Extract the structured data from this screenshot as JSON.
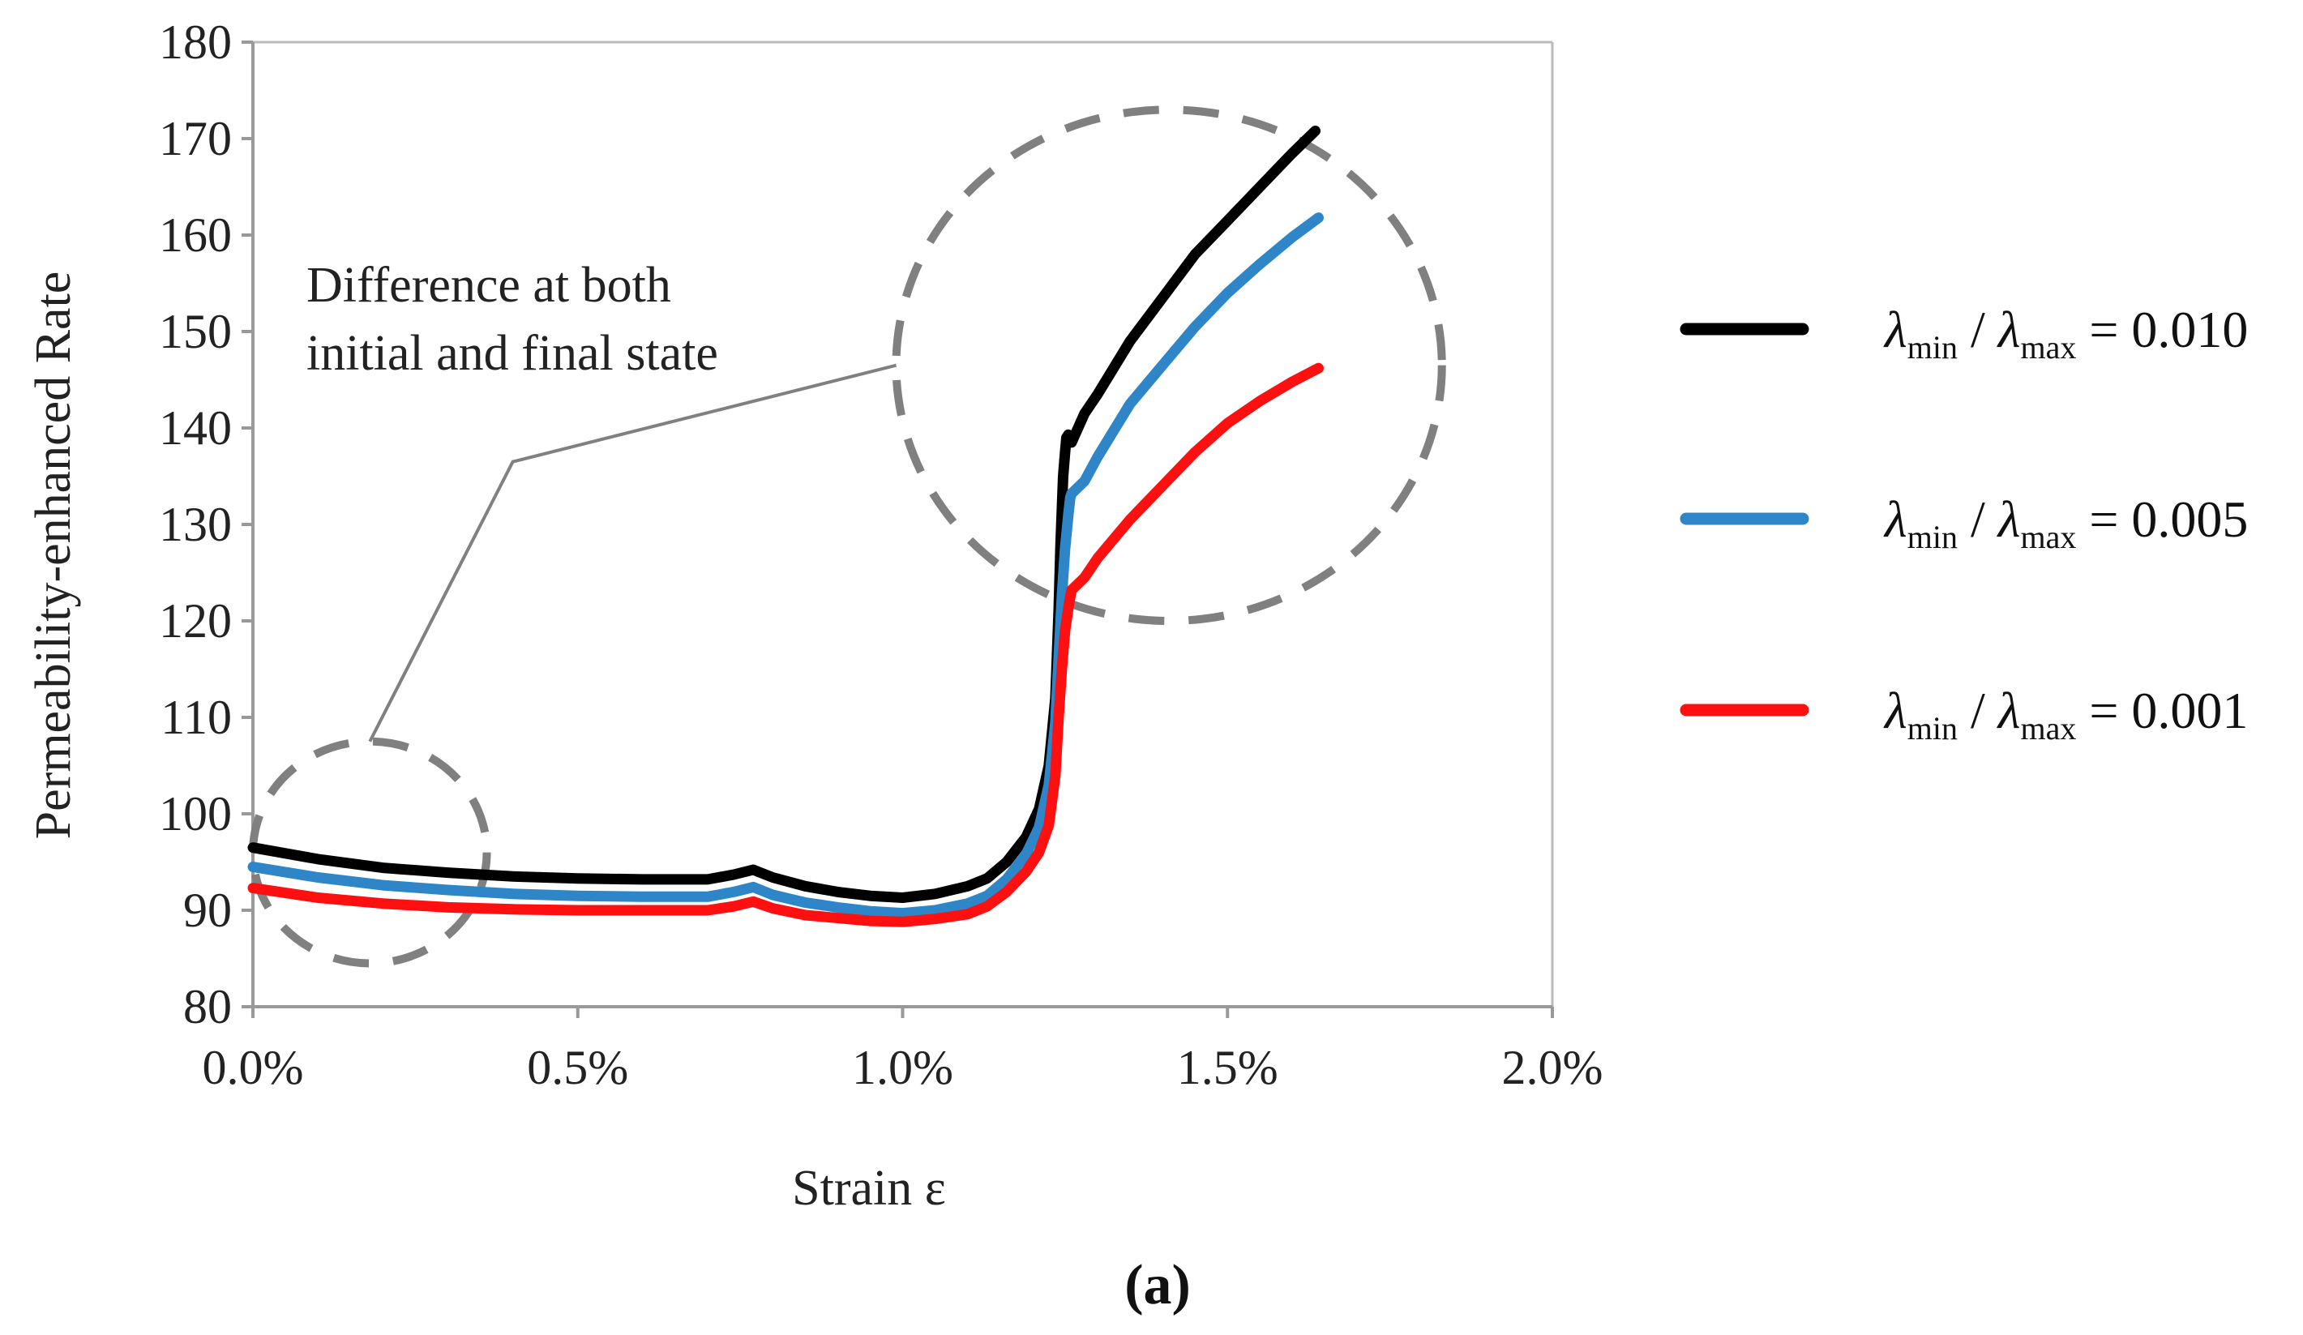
{
  "chart_data": {
    "type": "line",
    "title": "",
    "xlabel": "Strain ε",
    "ylabel": "Permeability-enhanced Rate",
    "xlim": [
      0.0,
      2.0
    ],
    "ylim": [
      80,
      180
    ],
    "x_ticks": [
      0.0,
      0.5,
      1.0,
      1.5,
      2.0
    ],
    "x_tick_labels": [
      "0.0%",
      "0.5%",
      "1.0%",
      "1.5%",
      "2.0%"
    ],
    "y_ticks": [
      80,
      90,
      100,
      110,
      120,
      130,
      140,
      150,
      160,
      170,
      180
    ],
    "y_tick_labels": [
      "80",
      "90",
      "100",
      "110",
      "120",
      "130",
      "140",
      "150",
      "160",
      "170",
      "180"
    ],
    "legend_position": "right",
    "annotation": {
      "line1": "Difference at both",
      "line2": "initial and final state"
    },
    "highlight_regions": [
      {
        "name": "initial",
        "center": [
          0.18,
          96
        ],
        "rx": 0.18,
        "ry": 11.5
      },
      {
        "name": "final",
        "center": [
          1.41,
          146.5
        ],
        "rx": 0.42,
        "ry": 26.5
      }
    ],
    "annotation_leader": [
      [
        0.99,
        146.5
      ],
      [
        0.4,
        136.5
      ],
      [
        0.18,
        107.5
      ]
    ],
    "series": [
      {
        "name": "λmin/λmax = 0.010",
        "legend": {
          "symbol": "λ",
          "sub1": "min",
          "sub2": "max",
          "value": "= 0.010"
        },
        "color": "#000000",
        "x": [
          0.0,
          0.1,
          0.2,
          0.3,
          0.4,
          0.5,
          0.6,
          0.7,
          0.74,
          0.77,
          0.8,
          0.85,
          0.9,
          0.95,
          1.0,
          1.05,
          1.1,
          1.13,
          1.16,
          1.19,
          1.21,
          1.225,
          1.235,
          1.24,
          1.243,
          1.247,
          1.25,
          1.252,
          1.255,
          1.26,
          1.28,
          1.3,
          1.35,
          1.4,
          1.45,
          1.5,
          1.55,
          1.6,
          1.635
        ],
        "y": [
          96.5,
          95.3,
          94.4,
          93.9,
          93.5,
          93.3,
          93.2,
          93.2,
          93.7,
          94.2,
          93.4,
          92.5,
          91.9,
          91.5,
          91.3,
          91.7,
          92.5,
          93.3,
          95.0,
          97.6,
          100.5,
          105.0,
          112.0,
          121.0,
          128.0,
          135.0,
          137.5,
          139.0,
          139.3,
          138.5,
          141.5,
          143.5,
          149.0,
          153.5,
          158.0,
          161.5,
          165.0,
          168.5,
          170.8
        ]
      },
      {
        "name": "λmin/λmax = 0.005",
        "legend": {
          "symbol": "λ",
          "sub1": "min",
          "sub2": "max",
          "value": "= 0.005"
        },
        "color": "#2E86C8",
        "x": [
          0.0,
          0.1,
          0.2,
          0.3,
          0.4,
          0.5,
          0.6,
          0.7,
          0.74,
          0.77,
          0.8,
          0.85,
          0.9,
          0.95,
          1.0,
          1.05,
          1.1,
          1.13,
          1.16,
          1.19,
          1.21,
          1.225,
          1.235,
          1.24,
          1.245,
          1.25,
          1.255,
          1.258,
          1.26,
          1.28,
          1.3,
          1.35,
          1.4,
          1.45,
          1.5,
          1.55,
          1.6,
          1.64
        ],
        "y": [
          94.5,
          93.4,
          92.6,
          92.1,
          91.7,
          91.5,
          91.4,
          91.4,
          91.9,
          92.4,
          91.6,
          90.8,
          90.3,
          89.9,
          89.7,
          90.0,
          90.7,
          91.5,
          93.2,
          95.8,
          98.6,
          103.0,
          109.5,
          116.0,
          122.5,
          127.5,
          131.0,
          132.8,
          133.2,
          134.5,
          137.0,
          142.5,
          146.5,
          150.5,
          154.0,
          157.0,
          159.8,
          161.8
        ]
      },
      {
        "name": "λmin/λmax = 0.001",
        "legend": {
          "symbol": "λ",
          "sub1": "min",
          "sub2": "max",
          "value": "= 0.001"
        },
        "color": "#FF1010",
        "x": [
          0.0,
          0.1,
          0.2,
          0.3,
          0.4,
          0.5,
          0.6,
          0.7,
          0.74,
          0.77,
          0.8,
          0.85,
          0.9,
          0.95,
          1.0,
          1.05,
          1.1,
          1.13,
          1.16,
          1.19,
          1.21,
          1.225,
          1.235,
          1.24,
          1.245,
          1.25,
          1.255,
          1.258,
          1.26,
          1.28,
          1.3,
          1.35,
          1.4,
          1.45,
          1.5,
          1.55,
          1.6,
          1.64
        ],
        "y": [
          92.3,
          91.3,
          90.7,
          90.3,
          90.1,
          90.0,
          90.0,
          90.0,
          90.4,
          90.9,
          90.2,
          89.5,
          89.2,
          88.9,
          88.8,
          89.1,
          89.6,
          90.4,
          91.9,
          94.0,
          96.0,
          98.8,
          104.0,
          110.0,
          115.0,
          119.0,
          121.3,
          122.5,
          123.2,
          124.5,
          126.5,
          130.5,
          134.0,
          137.5,
          140.5,
          142.8,
          144.8,
          146.2
        ]
      }
    ]
  },
  "caption": "(a)"
}
